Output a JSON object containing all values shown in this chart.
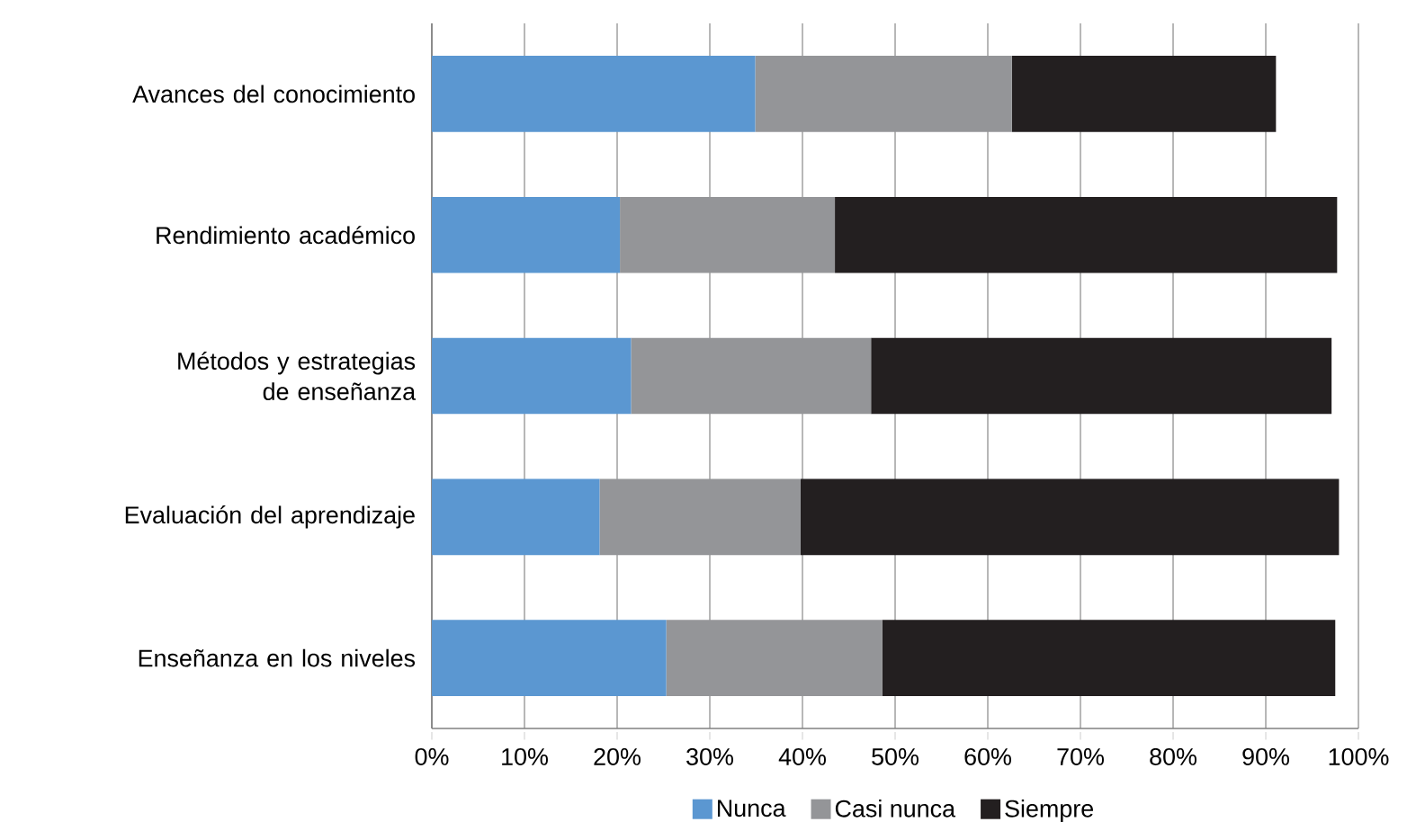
{
  "chart_data": {
    "type": "bar",
    "orientation": "horizontal",
    "stacked": true,
    "categories": [
      "Avances del conocimiento",
      "Rendimiento académico",
      "Métodos y estrategias de enseñanza",
      "Evaluación del aprendizaje",
      "Enseñanza en los niveles"
    ],
    "series": [
      {
        "name": "Nunca",
        "color": "#5b97d1",
        "values": [
          34.9,
          20.3,
          21.5,
          18.1,
          25.3
        ]
      },
      {
        "name": "Casi nunca",
        "color": "#949598",
        "values": [
          27.7,
          23.2,
          25.9,
          21.7,
          23.3
        ]
      },
      {
        "name": "Siempre",
        "color": "#231f20",
        "values": [
          28.5,
          54.2,
          49.7,
          58.1,
          48.9
        ]
      }
    ],
    "xlim": [
      0,
      100
    ],
    "xticks": [
      {
        "value": 0,
        "label": "0%"
      },
      {
        "value": 10,
        "label": "10%"
      },
      {
        "value": 20,
        "label": "20%"
      },
      {
        "value": 30,
        "label": "30%"
      },
      {
        "value": 40,
        "label": "40%"
      },
      {
        "value": 50,
        "label": "50%"
      },
      {
        "value": 60,
        "label": "60%"
      },
      {
        "value": 70,
        "label": "70%"
      },
      {
        "value": 80,
        "label": "80%"
      },
      {
        "value": 90,
        "label": "90%"
      },
      {
        "value": 100,
        "label": "100%"
      }
    ],
    "grid": "x",
    "legend": "bottom"
  }
}
